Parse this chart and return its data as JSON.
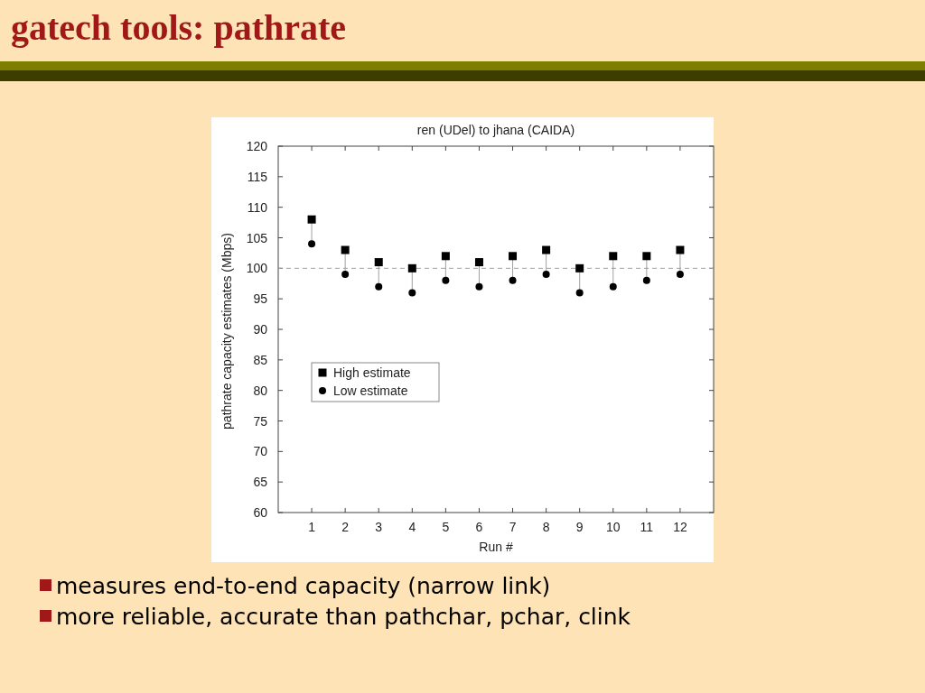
{
  "chart_data": {
    "type": "scatter",
    "title": "gatech tools: pathrate",
    "subtitle": "ren (UDel) to jhana (CAIDA)",
    "xlabel": "Run #",
    "ylabel": "pathrate capacity estimates (Mbps)",
    "x": [
      1,
      2,
      3,
      4,
      5,
      6,
      7,
      8,
      9,
      10,
      11,
      12
    ],
    "series": [
      {
        "name": "High estimate",
        "color": "#000000",
        "marker": "square",
        "values": [
          108,
          103,
          101,
          100,
          102,
          101,
          102,
          103,
          100,
          102,
          102,
          103
        ]
      },
      {
        "name": "Low estimate",
        "color": "#000000",
        "marker": "circle",
        "values": [
          104,
          99,
          97,
          96,
          98,
          97,
          98,
          99,
          96,
          97,
          98,
          99
        ]
      }
    ],
    "xlim": [
      0,
      13
    ],
    "xticks": [
      1,
      2,
      3,
      4,
      5,
      6,
      7,
      8,
      9,
      10,
      11,
      12
    ],
    "ylim": [
      60,
      120
    ],
    "yticks": [
      60,
      65,
      70,
      75,
      80,
      85,
      90,
      95,
      100,
      105,
      110,
      115,
      120
    ],
    "ref_lines": [
      {
        "axis": "y",
        "value": 100,
        "color": "#a0a0a0",
        "line_style": "dashed"
      }
    ],
    "legend": "left",
    "grid": false,
    "annotations": [
      "measures end-to-end capacity (narrow link)",
      "more reliable, accurate than pathchar, pchar, clink"
    ]
  }
}
